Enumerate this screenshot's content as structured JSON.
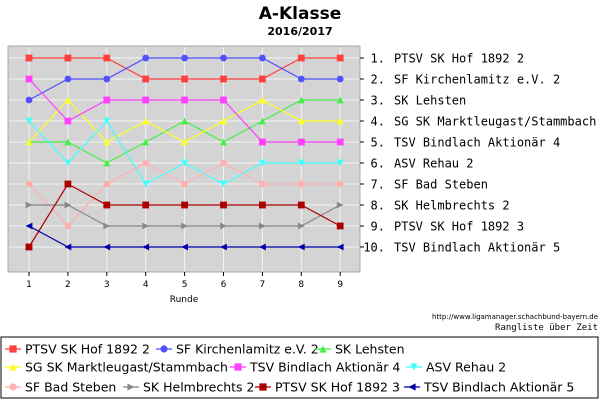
{
  "chart_data": {
    "type": "line",
    "title": "A-Klasse",
    "subtitle": "2016/2017",
    "xlabel": "Runde",
    "ylabel": "",
    "x": [
      1,
      2,
      3,
      4,
      5,
      6,
      7,
      8,
      9
    ],
    "y_range": [
      1,
      10
    ],
    "y_inverted": true,
    "grid": true,
    "legend_position": "bottom",
    "right_labels": [
      "1. PTSV SK Hof 1892 2",
      "2. SF Kirchenlamitz e.V. 2",
      "3. SK Lehsten",
      "4. SG SK Marktleugast/Stammbach",
      "5. TSV Bindlach Aktionär 4",
      "6. ASV Rehau 2",
      "7. SF Bad Steben",
      "8. SK Helmbrechts 2",
      "9. PTSV SK Hof 1892 3",
      "10. TSV Bindlach Aktionär 5"
    ],
    "credit": "http://www.ligamanager.schachbund-bayern.de",
    "caption": "Rangliste über Zeit",
    "series": [
      {
        "name": "PTSV SK Hof 1892 2",
        "color": "#ff4040",
        "marker": "square",
        "values": [
          1,
          1,
          1,
          2,
          2,
          2,
          2,
          1,
          1
        ]
      },
      {
        "name": "SF Kirchenlamitz e.V. 2",
        "color": "#5050ff",
        "marker": "circle",
        "values": [
          3,
          2,
          2,
          1,
          1,
          1,
          1,
          2,
          2
        ]
      },
      {
        "name": "SK Lehsten",
        "color": "#44ee44",
        "marker": "triangle-up",
        "values": [
          5,
          5,
          6,
          5,
          4,
          5,
          4,
          3,
          3
        ]
      },
      {
        "name": "SG SK Marktleugast/Stammbach",
        "color": "#ffff20",
        "marker": "triangle-up",
        "values": [
          5,
          3,
          5,
          4,
          5,
          4,
          3,
          4,
          4
        ]
      },
      {
        "name": "TSV Bindlach Aktionär 4",
        "color": "#ff40ff",
        "marker": "square",
        "values": [
          2,
          4,
          3,
          3,
          3,
          3,
          5,
          5,
          5
        ]
      },
      {
        "name": "ASV Rehau 2",
        "color": "#40ffff",
        "marker": "triangle-down",
        "values": [
          4,
          6,
          4,
          7,
          6,
          7,
          6,
          6,
          6
        ]
      },
      {
        "name": "SF Bad Steben",
        "color": "#ffb0b0",
        "marker": "circle",
        "values": [
          7,
          9,
          7,
          6,
          7,
          6,
          7,
          7,
          7
        ]
      },
      {
        "name": "SK Helmbrechts 2",
        "color": "#888888",
        "marker": "triangle-right",
        "values": [
          8,
          8,
          9,
          9,
          9,
          9,
          9,
          9,
          8
        ]
      },
      {
        "name": "PTSV SK Hof 1892 3",
        "color": "#aa0000",
        "marker": "square",
        "values": [
          10,
          7,
          8,
          8,
          8,
          8,
          8,
          8,
          9
        ]
      },
      {
        "name": "TSV Bindlach Aktionär 5",
        "color": "#0000aa",
        "marker": "triangle-left",
        "values": [
          9,
          10,
          10,
          10,
          10,
          10,
          10,
          10,
          10
        ]
      }
    ]
  }
}
